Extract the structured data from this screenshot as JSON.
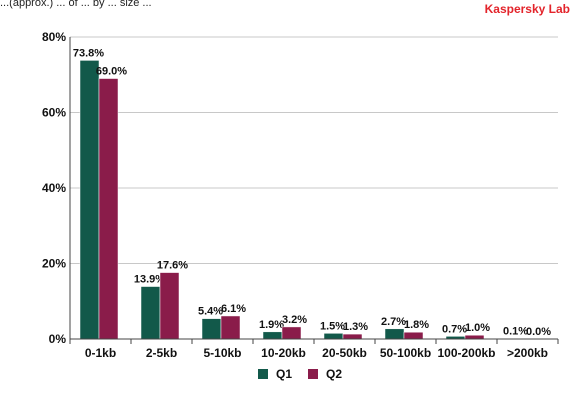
{
  "header": {
    "caption": "...(approx.) ... of ... by ... size ...",
    "brand": "Kaspersky Lab",
    "brand_color": "#e3242b"
  },
  "chart_data": {
    "type": "bar",
    "title": "",
    "xlabel": "",
    "ylabel": "",
    "categories": [
      "0-1kb",
      "2-5kb",
      "5-10kb",
      "10-20kb",
      "20-50kb",
      "50-100kb",
      "100-200kb",
      ">200kb"
    ],
    "series": [
      {
        "name": "Q1",
        "color": "#12594a",
        "values": [
          73.8,
          13.9,
          5.4,
          1.9,
          1.5,
          2.7,
          0.7,
          0.1
        ],
        "labels": [
          "73.8%",
          "13.9%",
          "5.4%",
          "1.9%",
          "1.5%",
          "2.7%",
          "0.7%",
          "0.1%"
        ]
      },
      {
        "name": "Q2",
        "color": "#8a1c4a",
        "values": [
          69.0,
          17.6,
          6.1,
          3.2,
          1.3,
          1.8,
          1.0,
          0.0
        ],
        "labels": [
          "69.0%",
          "17.6%",
          "6.1%",
          "3.2%",
          "1.3%",
          "1.8%",
          "1.0%",
          "0.0%"
        ]
      }
    ],
    "ylim": [
      0,
      80
    ],
    "yticks": [
      0,
      20,
      40,
      60,
      80
    ],
    "ytick_labels": [
      "0%",
      "20%",
      "40%",
      "60%",
      "80%"
    ],
    "grid": true,
    "legend": "bottom-center"
  }
}
